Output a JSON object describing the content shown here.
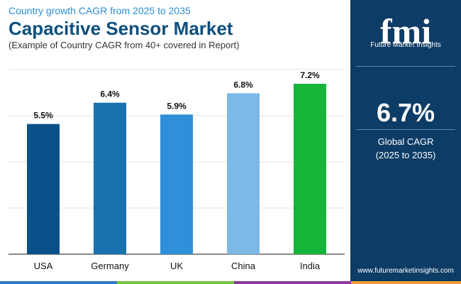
{
  "header": {
    "subtitle": "Country growth CAGR from 2025 to 2035",
    "title": "Capacitive Sensor Market",
    "caption": "(Example of Country CAGR from 40+ covered in Report)"
  },
  "chart_data": {
    "type": "bar",
    "categories": [
      "USA",
      "Germany",
      "UK",
      "China",
      "India"
    ],
    "values": [
      5.5,
      6.4,
      5.9,
      6.8,
      7.2
    ],
    "value_labels": [
      "5.5%",
      "6.4%",
      "5.9%",
      "6.8%",
      "7.2%"
    ],
    "colors": [
      "#0b5189",
      "#1a71b0",
      "#2f8fd8",
      "#7cb9e6",
      "#17b43a"
    ],
    "ylim": [
      0,
      7.8
    ],
    "grid": true,
    "title": "",
    "xlabel": "",
    "ylabel": ""
  },
  "sidebar": {
    "logo_text": "fmi",
    "logo_subtitle": "Future Market Insights",
    "global_value": "6.7%",
    "global_label": "Global CAGR",
    "global_period": "(2025 to 2035)",
    "website": "www.futuremarketinsights.com"
  },
  "footer_colors": [
    "#2c7bc4",
    "#7ac142",
    "#8b3a9e",
    "#f0a030"
  ]
}
